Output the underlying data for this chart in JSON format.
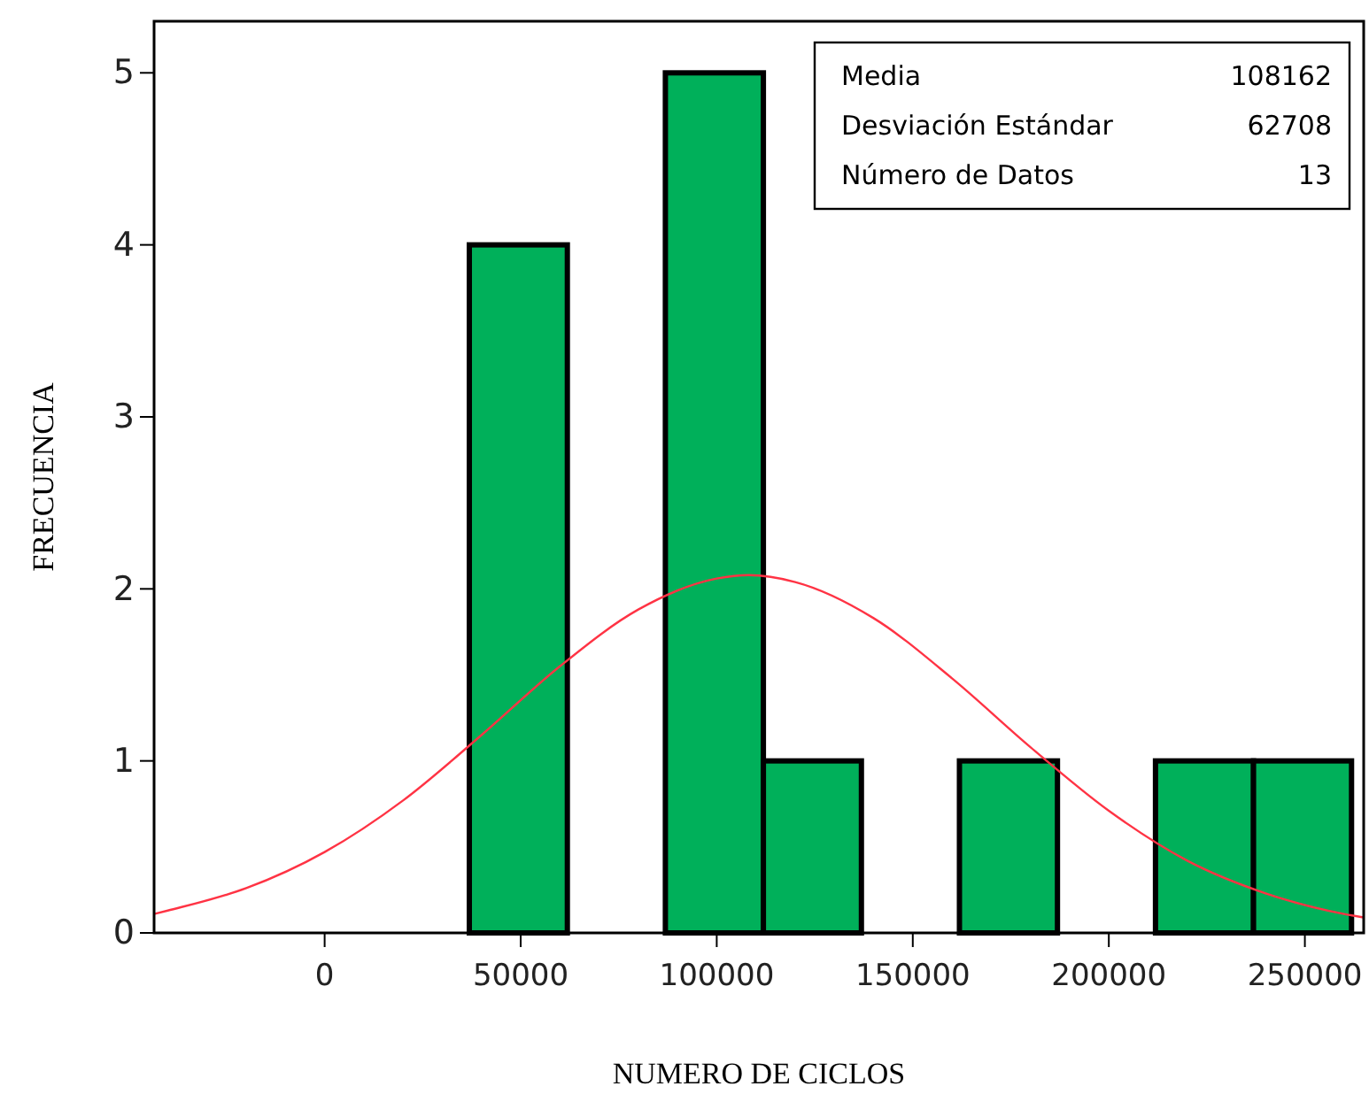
{
  "chart_data": {
    "type": "histogram",
    "xlabel": "NUMERO DE CICLOS",
    "ylabel": "FRECUENCIA",
    "bins": [
      36900,
      61900,
      86900,
      111900,
      136900,
      161900,
      186900,
      211900,
      236900,
      261900
    ],
    "values": [
      4,
      0,
      5,
      1,
      0,
      1,
      0,
      1,
      1
    ],
    "color": "#00b05a",
    "series": [
      {
        "type": "line",
        "color": "#ff3344",
        "x": [
          -43500,
          -40000,
          -20000,
          0,
          20000,
          40000,
          60000,
          80000,
          100000,
          108162,
          120000,
          140000,
          160000,
          180000,
          200000,
          220000,
          240000,
          260000,
          265000
        ],
        "values": [
          0.11,
          0.13,
          0.26,
          0.47,
          0.77,
          1.15,
          1.55,
          1.88,
          2.06,
          2.08,
          2.04,
          1.83,
          1.48,
          1.08,
          0.71,
          0.42,
          0.23,
          0.11,
          0.09
        ]
      }
    ],
    "xlim": [
      -43500,
      265000
    ],
    "xticks": [
      0,
      50000,
      100000,
      150000,
      200000,
      250000
    ],
    "ylim": [
      0,
      5.3
    ],
    "yticks": [
      0,
      1,
      2,
      3,
      4,
      5
    ],
    "annotations": [
      "Media",
      "108162",
      "Desviación Estándar",
      "62708",
      "Número de Datos",
      "13"
    ]
  }
}
